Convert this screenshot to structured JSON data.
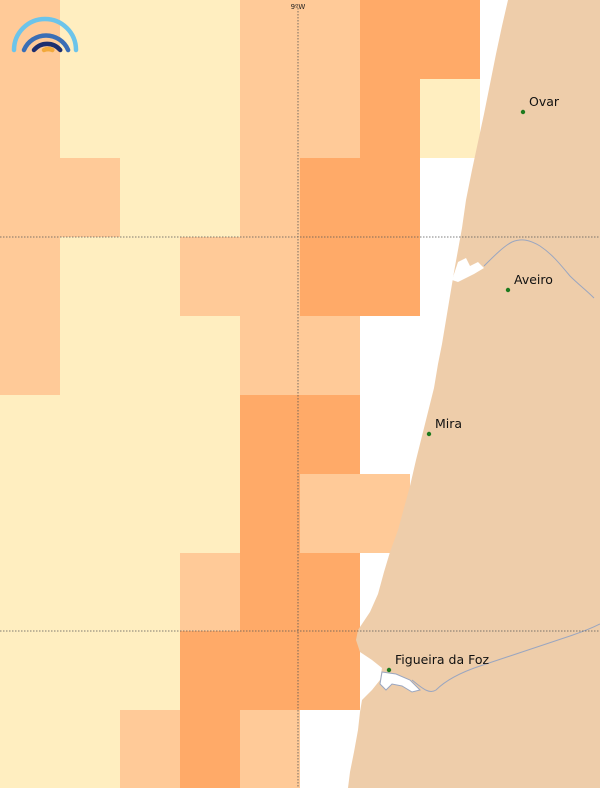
{
  "map": {
    "colors": {
      "sea_low": "#FFEEC0",
      "sea_mid": "#FFCA98",
      "sea_high": "#FFAA68",
      "land": "#EECDAA",
      "river": "#9AA6C0",
      "town_dot": "#1E7A1E",
      "gridline": "#555555"
    },
    "graticule": {
      "longitude_label": "9ºW"
    },
    "towns": [
      {
        "name": "Ovar"
      },
      {
        "name": "Aveiro"
      },
      {
        "name": "Mira"
      },
      {
        "name": "Figueira da Foz"
      }
    ],
    "logo": {
      "icon": "rainbow-logo-icon",
      "arc_colors": [
        "#6CC4EA",
        "#3A6EB5",
        "#1D2E6E",
        "#F2A93B"
      ]
    }
  }
}
